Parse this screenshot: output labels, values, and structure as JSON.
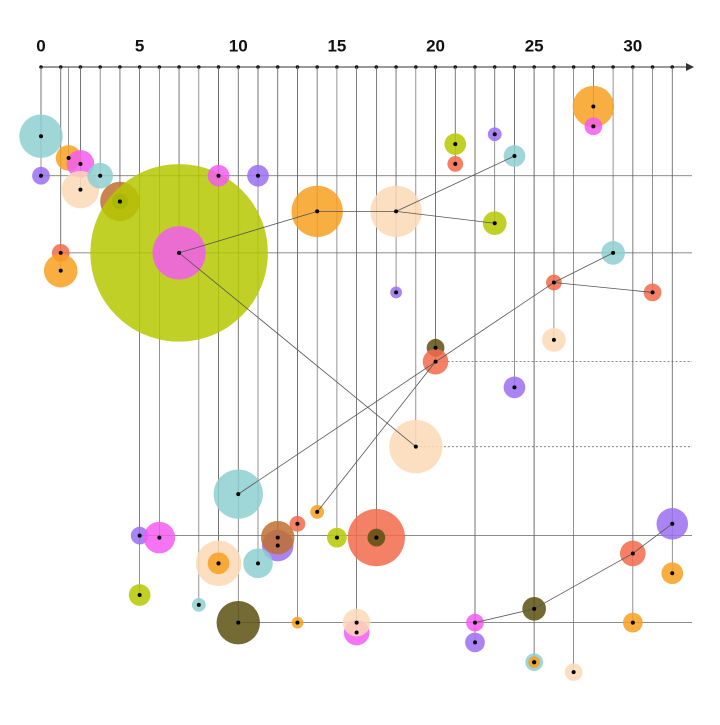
{
  "chart_data": {
    "type": "bubble",
    "xlim": [
      0,
      33
    ],
    "ylim": [
      31,
      0
    ],
    "xticks": [
      0,
      5,
      10,
      15,
      20,
      25,
      30
    ],
    "xticks_minor": [
      0,
      1,
      2,
      3,
      4,
      5,
      6,
      7,
      8,
      9,
      10,
      11,
      12,
      13,
      14,
      15,
      16,
      17,
      18,
      19,
      20,
      21,
      22,
      23,
      24,
      25,
      26,
      27,
      28,
      29,
      30,
      31,
      32
    ],
    "x": [
      0,
      0,
      1,
      1,
      1.4,
      2,
      2,
      3,
      4,
      4,
      7,
      7,
      9,
      11,
      14,
      18,
      23,
      21,
      21,
      23,
      24,
      28,
      28,
      29,
      26,
      31,
      18,
      26,
      20,
      20,
      24,
      19,
      10,
      14,
      13,
      12,
      12,
      15,
      17,
      17,
      5,
      6,
      9,
      9,
      11,
      5,
      8,
      10,
      13,
      16,
      16,
      22,
      22,
      25,
      25,
      25,
      27,
      30,
      30,
      32,
      32
    ],
    "y": [
      3.5,
      5.5,
      9.4,
      10.3,
      4.6,
      4.9,
      6.2,
      5.5,
      6.8,
      6.8,
      9.4,
      9.4,
      5.5,
      5.5,
      7.3,
      7.3,
      7.9,
      3.9,
      4.9,
      3.4,
      4.5,
      2.0,
      3.0,
      9.4,
      10.9,
      11.4,
      11.4,
      13.8,
      14.2,
      14.9,
      16.2,
      19.2,
      21.6,
      22.5,
      23.1,
      24.2,
      23.8,
      23.8,
      23.8,
      23.8,
      23.7,
      23.8,
      25.1,
      25.1,
      25.1,
      26.7,
      27.2,
      28.1,
      28.1,
      28.6,
      28.1,
      28.1,
      29.1,
      27.4,
      30.1,
      30.1,
      30.6,
      28.1,
      24.6,
      23.1,
      25.6
    ],
    "sizes": [
      1.1,
      0.45,
      0.45,
      0.85,
      0.65,
      0.7,
      0.95,
      0.65,
      1.0,
      0.4,
      4.5,
      1.35,
      0.55,
      0.55,
      1.3,
      1.3,
      0.6,
      0.55,
      0.4,
      0.35,
      0.55,
      1.05,
      0.45,
      0.6,
      0.4,
      0.45,
      0.3,
      0.6,
      0.45,
      0.65,
      0.55,
      1.35,
      1.25,
      0.35,
      0.4,
      0.8,
      0.85,
      0.5,
      1.45,
      0.45,
      0.45,
      0.8,
      1.15,
      0.55,
      0.75,
      0.55,
      0.35,
      1.1,
      0.3,
      0.65,
      0.7,
      0.45,
      0.5,
      0.6,
      0.45,
      0.3,
      0.45,
      0.5,
      0.65,
      0.8,
      0.55
    ],
    "colors": [
      "#8ecfd0",
      "#9b6ff0",
      "#f26a4a",
      "#f7a020",
      "#f7a020",
      "#f25cf0",
      "#fcd9b5",
      "#8ecfd0",
      "#c07030",
      "#5a5010",
      "#b5c800",
      "#f25cf0",
      "#f25cf0",
      "#9b6ff0",
      "#f7a020",
      "#fcd9b5",
      "#b5c800",
      "#b5c800",
      "#f26a4a",
      "#9b6ff0",
      "#8ecfd0",
      "#f7a020",
      "#f25cf0",
      "#8ecfd0",
      "#f26a4a",
      "#f26a4a",
      "#9b6ff0",
      "#fcd9b5",
      "#5a5010",
      "#f26a4a",
      "#9b6ff0",
      "#fcd9b5",
      "#8ecfd0",
      "#f7a020",
      "#f26a4a",
      "#9b6ff0",
      "#c07030",
      "#b5c800",
      "#f26a4a",
      "#5a5010",
      "#9b6ff0",
      "#f25cf0",
      "#fcd9b5",
      "#f7a020",
      "#8ecfd0",
      "#b5c800",
      "#8ecfd0",
      "#5a5010",
      "#f7a020",
      "#f25cf0",
      "#fcd9b5",
      "#f25cf0",
      "#9b6ff0",
      "#5a5010",
      "#8ecfd0",
      "#f7a020",
      "#fcd9b5",
      "#f7a020",
      "#f26a4a",
      "#9b6ff0",
      "#f7a020"
    ],
    "links": [
      [
        10,
        14
      ],
      [
        14,
        15
      ],
      [
        15,
        16
      ],
      [
        10,
        31
      ],
      [
        15,
        20
      ],
      [
        32,
        24
      ],
      [
        24,
        23
      ],
      [
        24,
        25
      ],
      [
        33,
        29
      ],
      [
        51,
        53
      ],
      [
        53,
        58
      ],
      [
        58,
        59
      ]
    ],
    "guides": [
      1,
      2,
      40,
      47
    ],
    "dashed_guides": [
      29,
      31
    ]
  }
}
